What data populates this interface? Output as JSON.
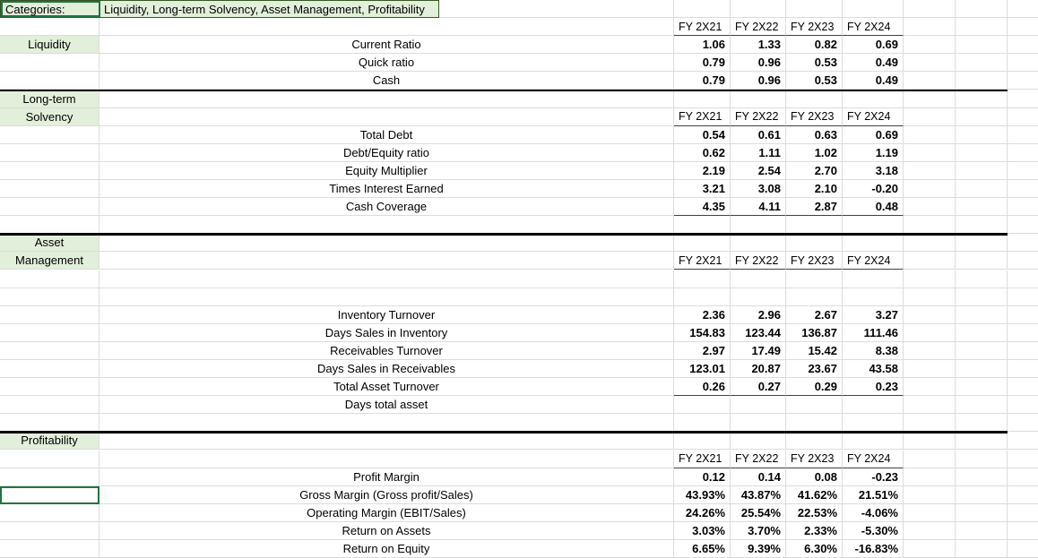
{
  "header": {
    "categories_label": "Categories:",
    "categories_value": "Liquidity, Long-term Solvency, Asset Management, Profitability"
  },
  "fy_columns": [
    "FY 2X21",
    "FY 2X22",
    "FY 2X23",
    "FY 2X24"
  ],
  "colors": {
    "section_fill": "#e2efda",
    "selection_green": "#217346",
    "gridline": "#dcdcdc",
    "divider": "#000000",
    "header_underline": "#404040"
  },
  "selected_cell": {
    "row": 28,
    "col": "A"
  },
  "rows": [
    {
      "type": "title"
    },
    {
      "type": "fy_header"
    },
    {
      "type": "data",
      "label": "Liquidity",
      "metric": "Current Ratio",
      "values": [
        "1.06",
        "1.33",
        "0.82",
        "0.69"
      ]
    },
    {
      "type": "data",
      "metric": "Quick ratio",
      "values": [
        "0.79",
        "0.96",
        "0.53",
        "0.49"
      ]
    },
    {
      "type": "data",
      "metric": "Cash",
      "values": [
        "0.79",
        "0.96",
        "0.53",
        "0.49"
      ]
    },
    {
      "type": "data",
      "label": "Long-term",
      "divider_above": true
    },
    {
      "type": "fy_header",
      "label": "Solvency"
    },
    {
      "type": "data",
      "metric": "Total Debt",
      "values": [
        "0.54",
        "0.61",
        "0.63",
        "0.69"
      ]
    },
    {
      "type": "data",
      "metric": "Debt/Equity ratio",
      "values": [
        "0.62",
        "1.11",
        "1.02",
        "1.19"
      ]
    },
    {
      "type": "data",
      "metric": "Equity Multiplier",
      "values": [
        "2.19",
        "2.54",
        "2.70",
        "3.18"
      ]
    },
    {
      "type": "data",
      "metric": "Times Interest Earned",
      "values": [
        "3.21",
        "3.08",
        "2.10",
        "-0.20"
      ]
    },
    {
      "type": "data",
      "metric": "Cash Coverage",
      "values": [
        "4.35",
        "4.11",
        "2.87",
        "0.48"
      ],
      "underline": true
    },
    {
      "type": "data"
    },
    {
      "type": "data",
      "label": "Asset",
      "divider_above": true
    },
    {
      "type": "fy_header",
      "label": "Management"
    },
    {
      "type": "data"
    },
    {
      "type": "data"
    },
    {
      "type": "data",
      "metric": "Inventory Turnover",
      "values": [
        "2.36",
        "2.96",
        "2.67",
        "3.27"
      ]
    },
    {
      "type": "data",
      "metric": "Days Sales in Inventory",
      "values": [
        "154.83",
        "123.44",
        "136.87",
        "111.46"
      ]
    },
    {
      "type": "data",
      "metric": "Receivables Turnover",
      "values": [
        "2.97",
        "17.49",
        "15.42",
        "8.38"
      ]
    },
    {
      "type": "data",
      "metric": "Days Sales in Receivables",
      "values": [
        "123.01",
        "20.87",
        "23.67",
        "43.58"
      ]
    },
    {
      "type": "data",
      "metric": "Total Asset Turnover",
      "values": [
        "0.26",
        "0.27",
        "0.29",
        "0.23"
      ],
      "underline": true
    },
    {
      "type": "data",
      "metric": "Days total asset"
    },
    {
      "type": "data"
    },
    {
      "type": "data",
      "label": "Profitability",
      "divider_above": true
    },
    {
      "type": "fy_header"
    },
    {
      "type": "data",
      "metric": "Profit Margin",
      "values": [
        "0.12",
        "0.14",
        "0.08",
        "-0.23"
      ]
    },
    {
      "type": "data",
      "metric": "Gross Margin (Gross profit/Sales)",
      "values": [
        "43.93%",
        "43.87%",
        "41.62%",
        "21.51%"
      ]
    },
    {
      "type": "data",
      "metric": "Operating Margin (EBIT/Sales)",
      "values": [
        "24.26%",
        "25.54%",
        "22.53%",
        "-4.06%"
      ]
    },
    {
      "type": "data",
      "metric": "Return on Assets",
      "values": [
        "3.03%",
        "3.70%",
        "2.33%",
        "-5.30%"
      ]
    },
    {
      "type": "data",
      "metric": "Return on Equity",
      "values": [
        "6.65%",
        "9.39%",
        "6.30%",
        "-16.83%"
      ]
    }
  ]
}
